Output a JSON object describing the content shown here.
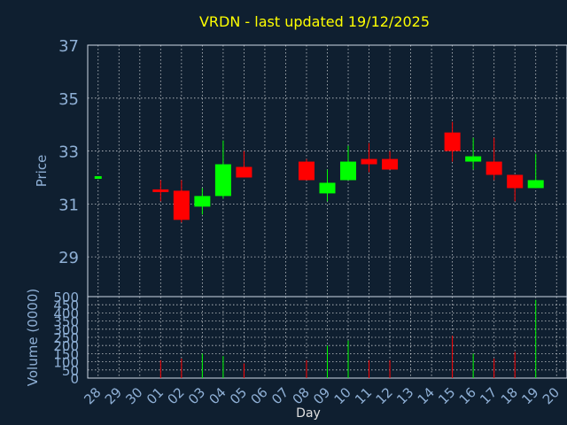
{
  "chart_data": {
    "type": "candlestick",
    "title": "VRDN - last updated 19/12/2025",
    "price_axis": {
      "label": "Price",
      "ylim": [
        27.5,
        37
      ],
      "ticks": [
        29,
        31,
        33,
        35,
        37
      ]
    },
    "volume_axis": {
      "label": "Volume (0000)",
      "ylim": [
        0,
        500
      ],
      "ticks": [
        0,
        50,
        100,
        150,
        200,
        250,
        300,
        350,
        400,
        450,
        500
      ]
    },
    "xlabel": "Day",
    "days": [
      "28",
      "29",
      "30",
      "01",
      "02",
      "03",
      "04",
      "05",
      "06",
      "07",
      "08",
      "09",
      "10",
      "11",
      "12",
      "13",
      "14",
      "15",
      "16",
      "17",
      "18",
      "19",
      "20"
    ],
    "candles": [
      {
        "day": "28",
        "open": 32.0,
        "high": 32.0,
        "low": 32.0,
        "close": 32.0,
        "volume": 0
      },
      {
        "day": "01",
        "open": 31.5,
        "high": 31.9,
        "low": 31.1,
        "close": 31.4,
        "volume": 110
      },
      {
        "day": "02",
        "open": 31.5,
        "high": 31.9,
        "low": 30.3,
        "close": 30.4,
        "volume": 120
      },
      {
        "day": "03",
        "open": 30.9,
        "high": 31.6,
        "low": 30.6,
        "close": 31.3,
        "volume": 150
      },
      {
        "day": "04",
        "open": 31.3,
        "high": 33.4,
        "low": 31.2,
        "close": 32.5,
        "volume": 135
      },
      {
        "day": "05",
        "open": 32.4,
        "high": 33.0,
        "low": 32.0,
        "close": 32.0,
        "volume": 90
      },
      {
        "day": "08",
        "open": 32.6,
        "high": 32.7,
        "low": 31.9,
        "close": 31.9,
        "volume": 110
      },
      {
        "day": "09",
        "open": 31.4,
        "high": 32.3,
        "low": 31.1,
        "close": 31.8,
        "volume": 200
      },
      {
        "day": "10",
        "open": 31.9,
        "high": 33.2,
        "low": 31.9,
        "close": 32.6,
        "volume": 230
      },
      {
        "day": "11",
        "open": 32.7,
        "high": 33.3,
        "low": 32.2,
        "close": 32.5,
        "volume": 110
      },
      {
        "day": "12",
        "open": 32.7,
        "high": 33.0,
        "low": 32.3,
        "close": 32.3,
        "volume": 110
      },
      {
        "day": "15",
        "open": 33.7,
        "high": 34.1,
        "low": 32.6,
        "close": 33.0,
        "volume": 260
      },
      {
        "day": "16",
        "open": 32.6,
        "high": 33.5,
        "low": 32.3,
        "close": 32.8,
        "volume": 150
      },
      {
        "day": "17",
        "open": 32.6,
        "high": 33.5,
        "low": 31.9,
        "close": 32.1,
        "volume": 120
      },
      {
        "day": "18",
        "open": 32.1,
        "high": 32.1,
        "low": 31.1,
        "close": 31.6,
        "volume": 160
      },
      {
        "day": "19",
        "open": 31.6,
        "high": 32.9,
        "low": 31.6,
        "close": 31.9,
        "volume": 480
      }
    ],
    "colors": {
      "up": "#00ff00",
      "down": "#ff0000",
      "volume_up": "#00ff00",
      "volume_down": "#ff0000",
      "background": "#0f1f30",
      "title": "#ffff00",
      "axis_text": "#8fb0d6"
    },
    "grid": true
  }
}
